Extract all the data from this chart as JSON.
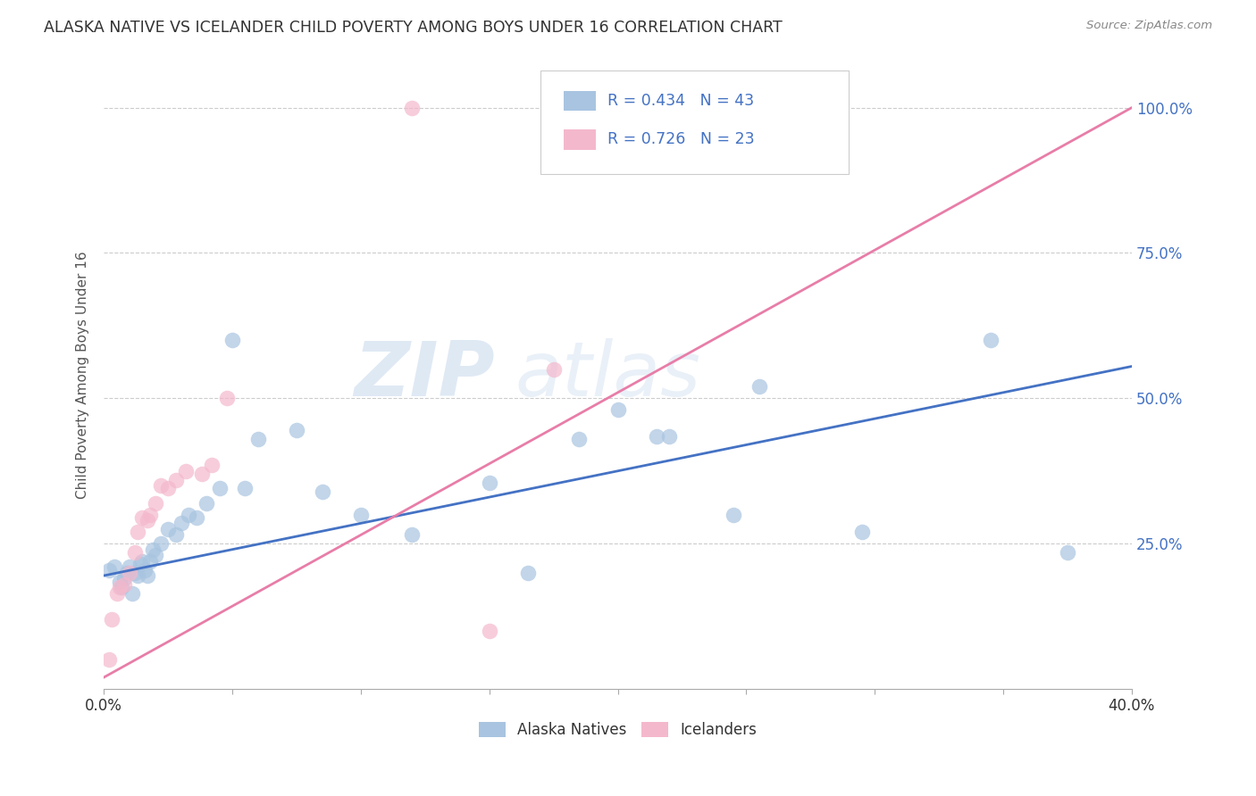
{
  "title": "ALASKA NATIVE VS ICELANDER CHILD POVERTY AMONG BOYS UNDER 16 CORRELATION CHART",
  "source": "Source: ZipAtlas.com",
  "ylabel": "Child Poverty Among Boys Under 16",
  "xlim": [
    0.0,
    0.4
  ],
  "ylim": [
    0.0,
    1.08
  ],
  "xtick_vals": [
    0.0,
    0.05,
    0.1,
    0.15,
    0.2,
    0.25,
    0.3,
    0.35,
    0.4
  ],
  "xtick_labels_sparse": {
    "0.0": "0.0%",
    "0.40": "40.0%"
  },
  "ytick_vals": [
    0.25,
    0.5,
    0.75,
    1.0
  ],
  "ytick_labels": [
    "25.0%",
    "50.0%",
    "75.0%",
    "100.0%"
  ],
  "alaska_color": "#a8c4e0",
  "alaska_edge_color": "#7aabcf",
  "iceland_color": "#f4b8cc",
  "iceland_edge_color": "#e87da8",
  "alaska_line_color": "#4472c4",
  "iceland_line_color": "#e87da8",
  "alaska_r": "0.434",
  "alaska_n": "43",
  "iceland_r": "0.726",
  "iceland_n": "23",
  "watermark_zip": "ZIP",
  "watermark_atlas": "atlas",
  "legend_label_alaska": "Alaska Natives",
  "legend_label_iceland": "Icelanders",
  "alaska_scatter_x": [
    0.002,
    0.004,
    0.006,
    0.007,
    0.008,
    0.009,
    0.01,
    0.011,
    0.012,
    0.013,
    0.014,
    0.015,
    0.016,
    0.017,
    0.018,
    0.019,
    0.02,
    0.022,
    0.025,
    0.028,
    0.03,
    0.033,
    0.036,
    0.04,
    0.045,
    0.05,
    0.055,
    0.06,
    0.075,
    0.085,
    0.1,
    0.12,
    0.15,
    0.165,
    0.185,
    0.2,
    0.215,
    0.22,
    0.245,
    0.255,
    0.295,
    0.345,
    0.375
  ],
  "alaska_scatter_y": [
    0.205,
    0.21,
    0.185,
    0.175,
    0.19,
    0.2,
    0.21,
    0.165,
    0.2,
    0.195,
    0.215,
    0.22,
    0.205,
    0.195,
    0.22,
    0.24,
    0.23,
    0.25,
    0.275,
    0.265,
    0.285,
    0.3,
    0.295,
    0.32,
    0.345,
    0.6,
    0.345,
    0.43,
    0.445,
    0.34,
    0.3,
    0.265,
    0.355,
    0.2,
    0.43,
    0.48,
    0.435,
    0.435,
    0.3,
    0.52,
    0.27,
    0.6,
    0.235
  ],
  "iceland_scatter_x": [
    0.002,
    0.003,
    0.005,
    0.006,
    0.008,
    0.01,
    0.012,
    0.013,
    0.015,
    0.017,
    0.018,
    0.02,
    0.022,
    0.025,
    0.028,
    0.032,
    0.038,
    0.042,
    0.048,
    0.12,
    0.15,
    0.175,
    0.2
  ],
  "iceland_scatter_y": [
    0.05,
    0.12,
    0.165,
    0.175,
    0.18,
    0.2,
    0.235,
    0.27,
    0.295,
    0.29,
    0.3,
    0.32,
    0.35,
    0.345,
    0.36,
    0.375,
    0.37,
    0.385,
    0.5,
    1.0,
    0.1,
    0.55,
    1.0
  ],
  "alaska_trendline": [
    0.0,
    0.4,
    0.195,
    0.555
  ],
  "iceland_trendline": [
    0.0,
    0.4,
    0.02,
    1.0
  ]
}
